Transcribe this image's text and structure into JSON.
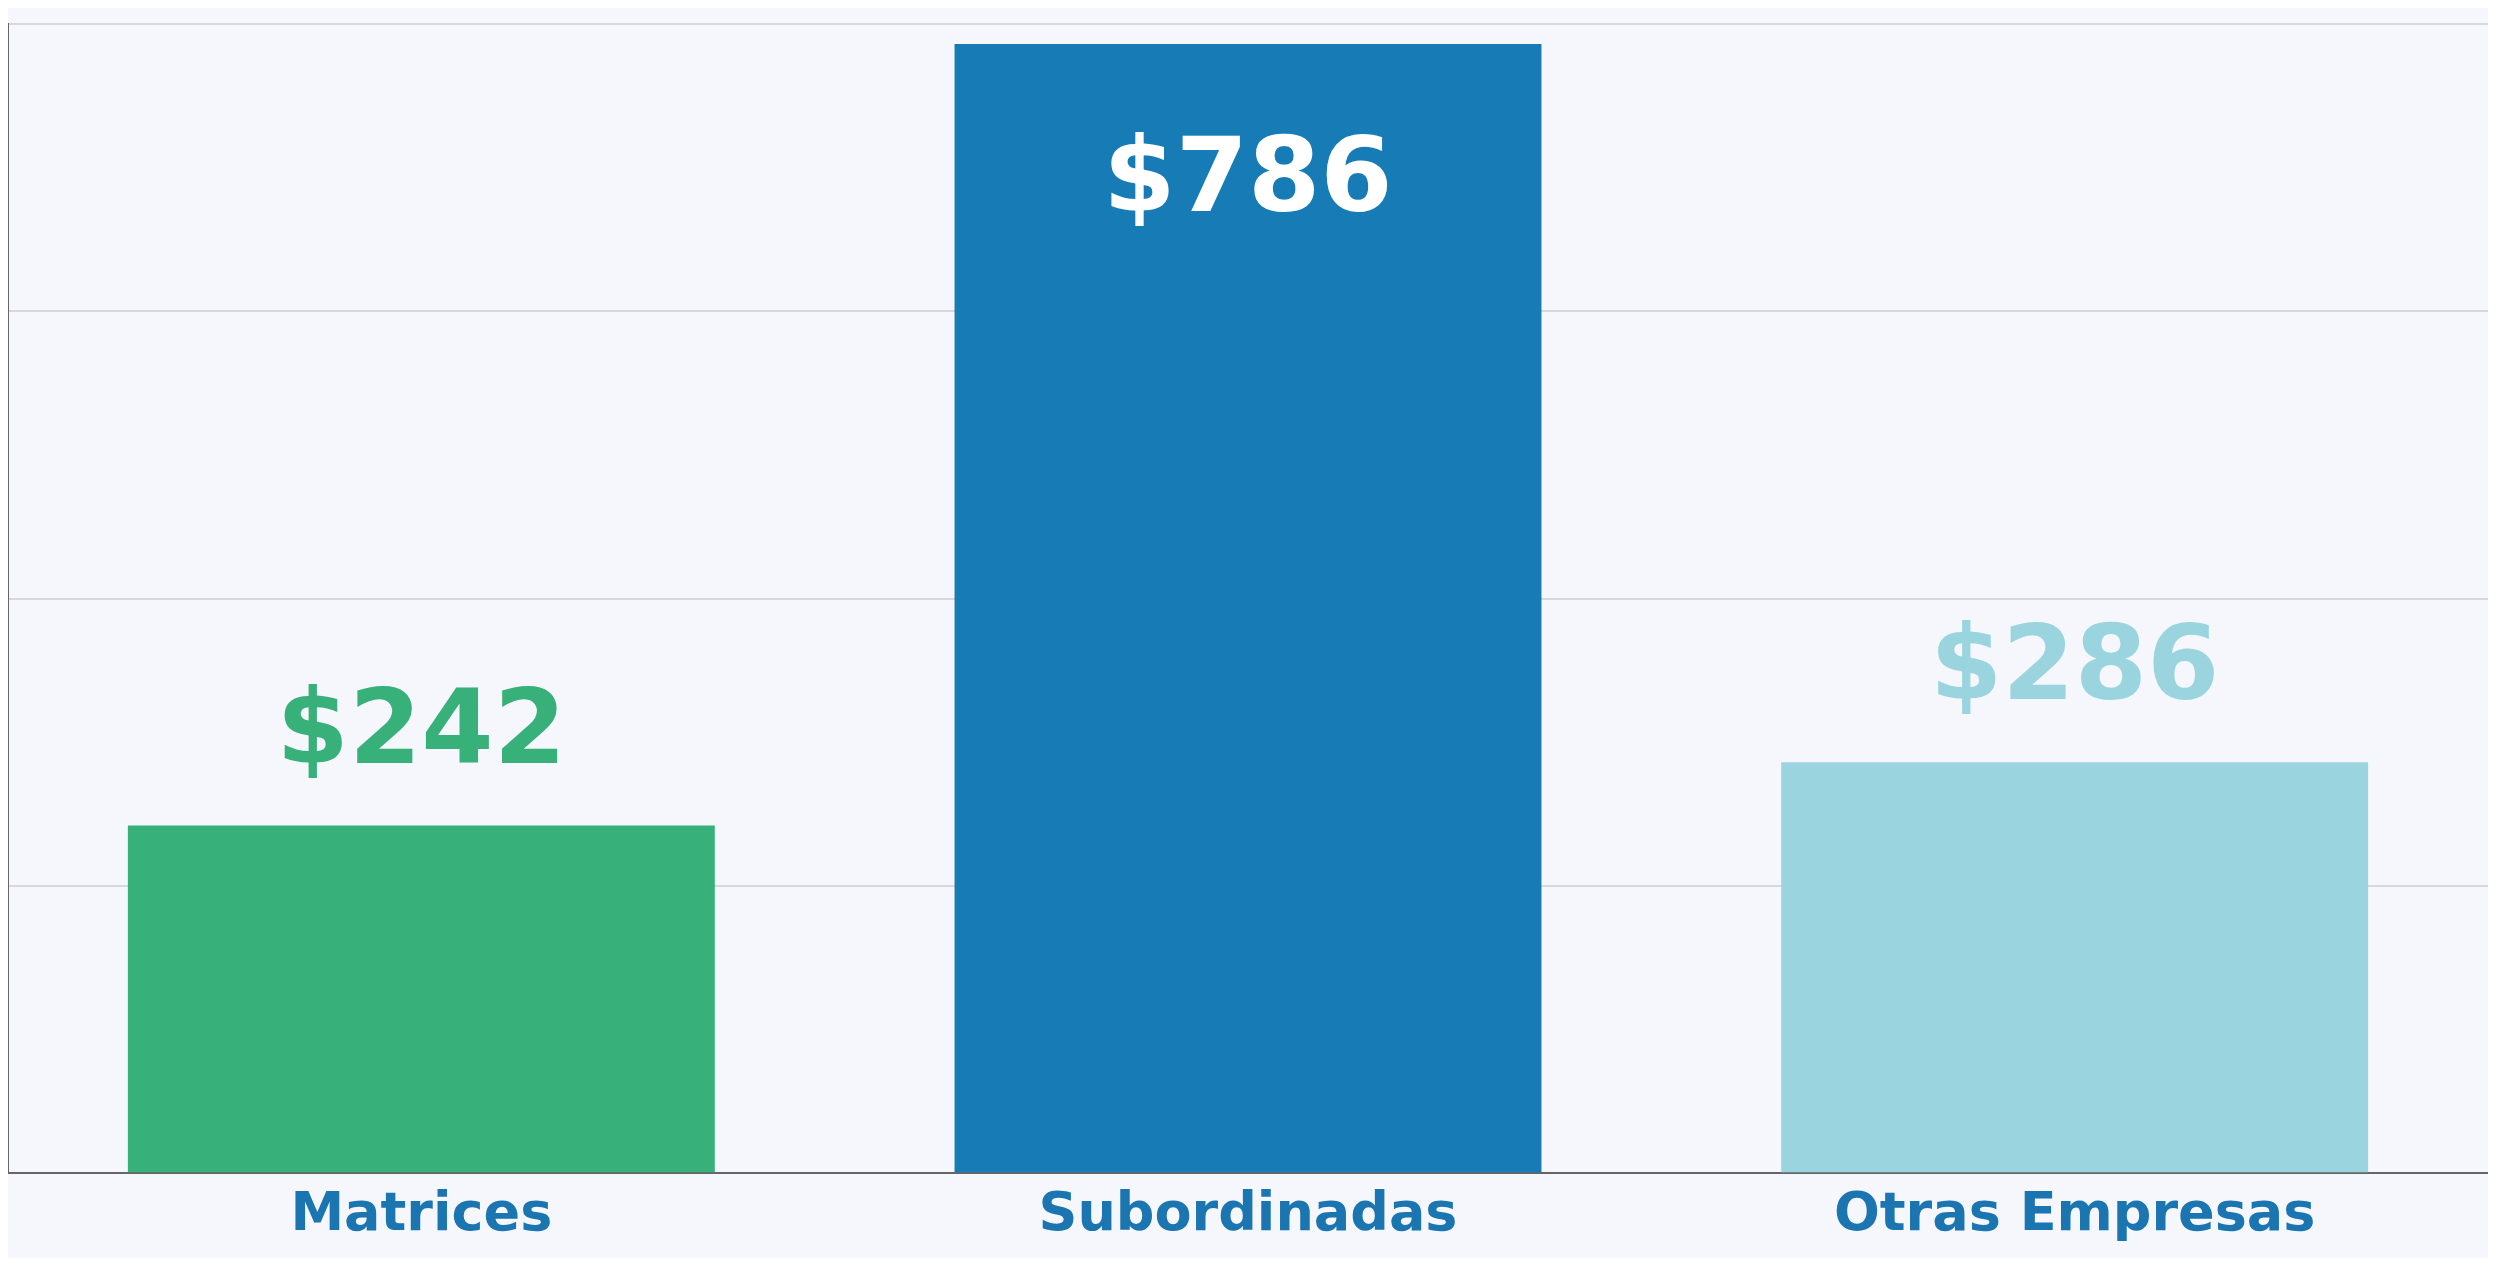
{
  "chart_data": {
    "type": "bar",
    "categories": [
      "Matrices",
      "Subordinadas",
      "Otras Empresas"
    ],
    "values": [
      242,
      786,
      286
    ],
    "colors": [
      "#38b07a",
      "#177cb6",
      "#9ad5df"
    ],
    "value_labels": [
      "$242",
      "$786",
      "$286"
    ],
    "ylim": [
      0,
      800
    ],
    "yticks": [
      {
        "value": 0,
        "label": null
      },
      {
        "value": 200,
        "label": null
      },
      {
        "value": 400,
        "label": null
      },
      {
        "value": 600,
        "label": null
      },
      {
        "value": 800,
        "label": null
      }
    ],
    "tick_labels": "x",
    "grid": "y",
    "legend": false
  }
}
